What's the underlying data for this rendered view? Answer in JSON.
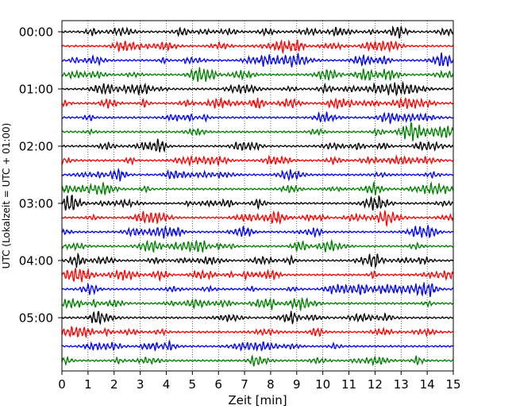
{
  "chart_data": {
    "type": "line",
    "title": "",
    "xlabel": "Zeit  [min]",
    "ylabel": "UTC (Lokalzeit = UTC + 01:00)",
    "xlim": [
      0,
      15
    ],
    "x_ticks": [
      0,
      1,
      2,
      3,
      4,
      5,
      6,
      7,
      8,
      9,
      10,
      11,
      12,
      13,
      14,
      15
    ],
    "x_tick_labels": [
      "0",
      "1",
      "2",
      "3",
      "4",
      "5",
      "6",
      "7",
      "8",
      "9",
      "10",
      "11",
      "12",
      "13",
      "14",
      "15"
    ],
    "y_tick_labels": [
      "00:00",
      "01:00",
      "02:00",
      "03:00",
      "04:00",
      "05:00"
    ],
    "trace_count": 24,
    "trace_minutes": 15,
    "trace_colors": [
      "#000000",
      "#ff0000",
      "#0000ff",
      "#008000"
    ],
    "grid": {
      "vertical": true,
      "style": "dotted"
    },
    "legend": "none"
  }
}
